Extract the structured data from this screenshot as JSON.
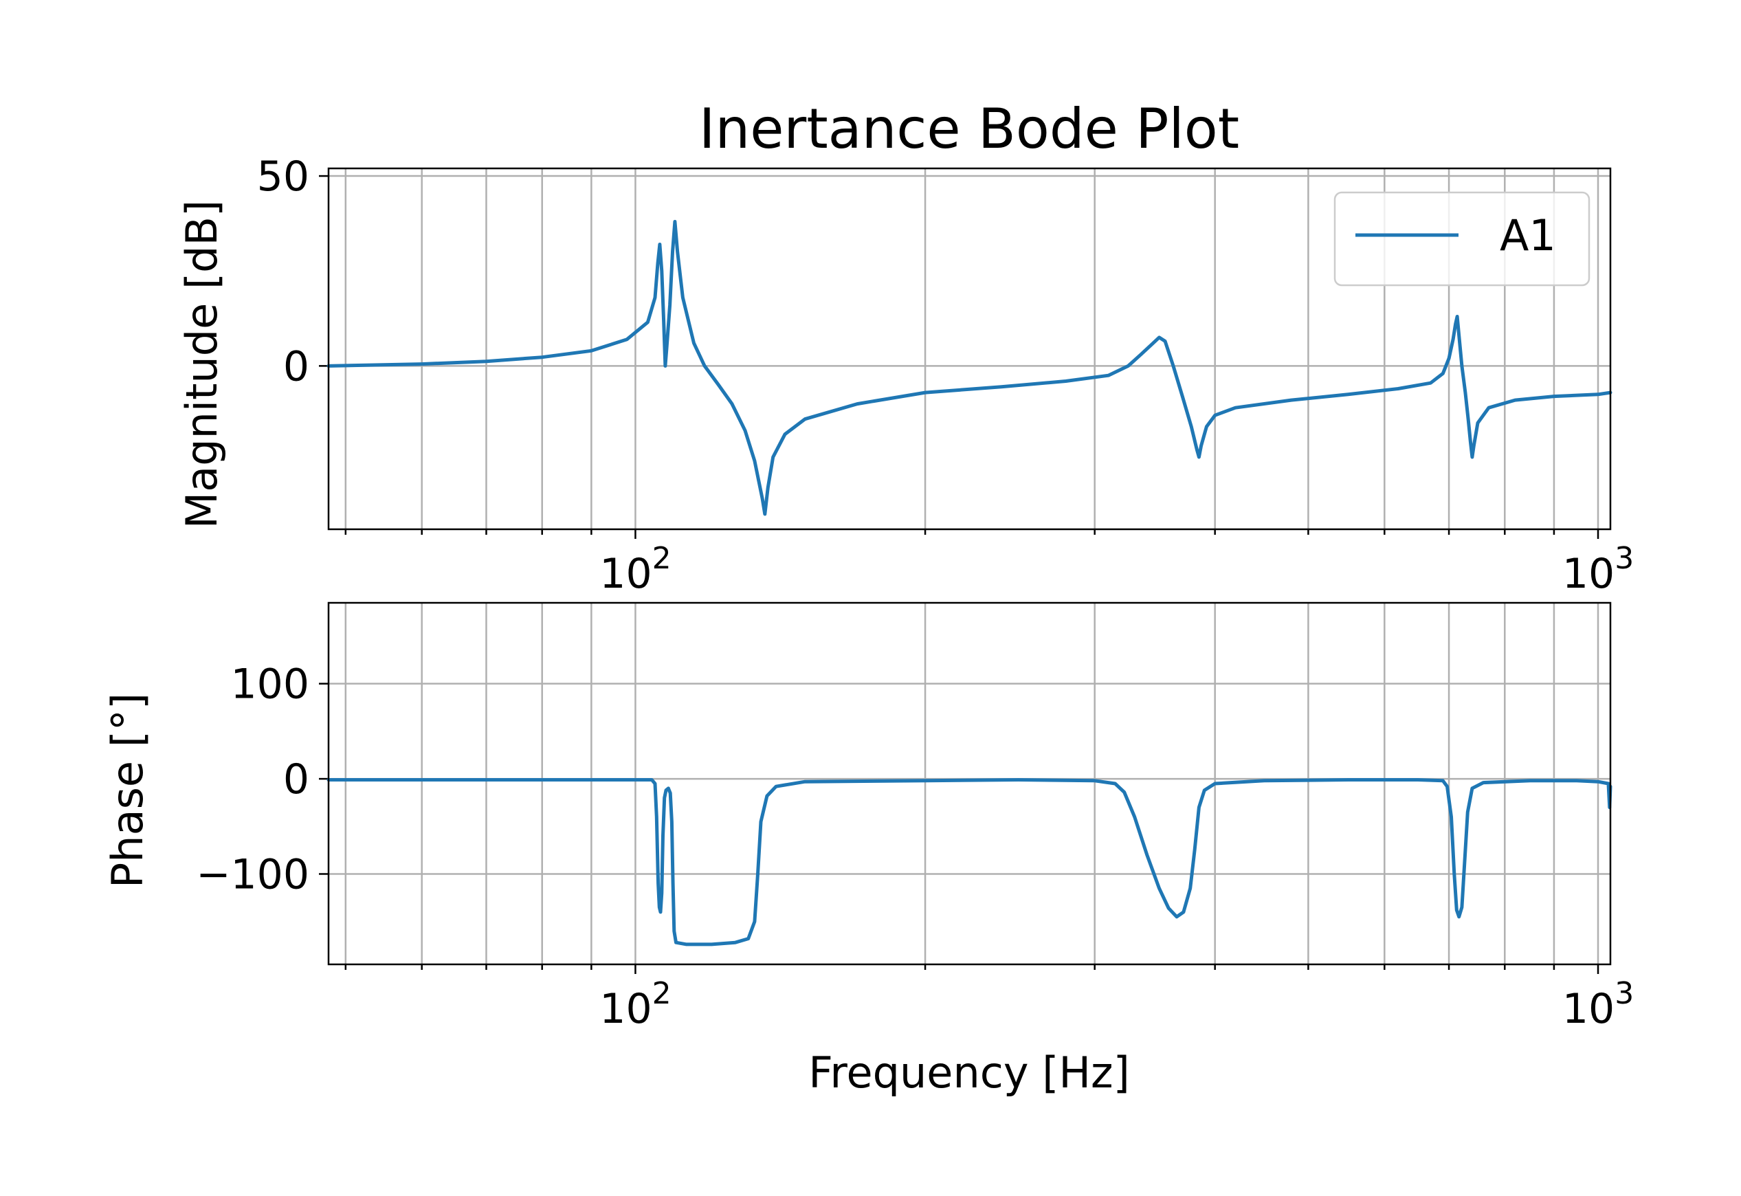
{
  "chart_data": {
    "type": "line",
    "title": "Inertance Bode Plot",
    "xlabel": "Frequency [Hz]",
    "x_scale": "log",
    "xlim": [
      48,
      1030
    ],
    "x_major_ticks": [
      {
        "value": 100,
        "base": "10",
        "exp": "2"
      },
      {
        "value": 1000,
        "base": "10",
        "exp": "3"
      }
    ],
    "x_minor_ticks": [
      50,
      60,
      70,
      80,
      90,
      200,
      300,
      400,
      500,
      600,
      700,
      800,
      900
    ],
    "legend": {
      "position": "top-right",
      "entries": [
        "A1"
      ]
    },
    "grid": true,
    "line_color": "#1f77b4",
    "subplots": [
      {
        "name": "magnitude",
        "ylabel": "Magnitude [dB]",
        "ylim": [
          -43,
          52
        ],
        "yticks": [
          0,
          50
        ],
        "series": [
          {
            "name": "A1",
            "points": [
              [
                48,
                0
              ],
              [
                60,
                0.5
              ],
              [
                70,
                1.2
              ],
              [
                80,
                2.3
              ],
              [
                90,
                4.0
              ],
              [
                98,
                7.0
              ],
              [
                103,
                11.5
              ],
              [
                104.8,
                18
              ],
              [
                105.5,
                27
              ],
              [
                106.0,
                32
              ],
              [
                106.5,
                25
              ],
              [
                107.0,
                12
              ],
              [
                107.4,
                0
              ],
              [
                107.8,
                5
              ],
              [
                108.6,
                16
              ],
              [
                109.3,
                30
              ],
              [
                109.9,
                38
              ],
              [
                110.6,
                30
              ],
              [
                112,
                18
              ],
              [
                115,
                6
              ],
              [
                118,
                0
              ],
              [
                122,
                -5
              ],
              [
                126,
                -10
              ],
              [
                130,
                -17
              ],
              [
                133,
                -25
              ],
              [
                134.5,
                -31
              ],
              [
                135.5,
                -35
              ],
              [
                136.3,
                -39
              ],
              [
                137.3,
                -32
              ],
              [
                139,
                -24
              ],
              [
                143,
                -18
              ],
              [
                150,
                -14
              ],
              [
                170,
                -10
              ],
              [
                200,
                -7
              ],
              [
                240,
                -5.5
              ],
              [
                280,
                -4
              ],
              [
                310,
                -2.5
              ],
              [
                325,
                0
              ],
              [
                335,
                3
              ],
              [
                345,
                6
              ],
              [
                350,
                7.5
              ],
              [
                355,
                6.5
              ],
              [
                362,
                0
              ],
              [
                370,
                -8
              ],
              [
                378,
                -16
              ],
              [
                383,
                -22
              ],
              [
                385,
                -24
              ],
              [
                387,
                -21
              ],
              [
                392,
                -16
              ],
              [
                400,
                -13
              ],
              [
                420,
                -11
              ],
              [
                480,
                -9
              ],
              [
                550,
                -7.5
              ],
              [
                620,
                -6
              ],
              [
                670,
                -4.5
              ],
              [
                690,
                -2
              ],
              [
                700,
                2
              ],
              [
                707,
                7
              ],
              [
                711,
                11
              ],
              [
                714,
                13
              ],
              [
                717,
                8
              ],
              [
                722,
                0
              ],
              [
                728,
                -7
              ],
              [
                733,
                -14
              ],
              [
                737,
                -20
              ],
              [
                740,
                -24
              ],
              [
                743,
                -21
              ],
              [
                750,
                -15
              ],
              [
                770,
                -11
              ],
              [
                820,
                -9
              ],
              [
                900,
                -8
              ],
              [
                1000,
                -7.5
              ],
              [
                1030,
                -7
              ]
            ]
          }
        ]
      },
      {
        "name": "phase",
        "ylabel": "Phase [°]",
        "ylim": [
          -195,
          185
        ],
        "yticks": [
          -100,
          0,
          100
        ],
        "series": [
          {
            "name": "A1",
            "points": [
              [
                48,
                -1
              ],
              [
                80,
                -1
              ],
              [
                100,
                -1
              ],
              [
                104,
                -1
              ],
              [
                104.8,
                -5
              ],
              [
                105.2,
                -40
              ],
              [
                105.6,
                -110
              ],
              [
                105.9,
                -135
              ],
              [
                106.2,
                -140
              ],
              [
                106.5,
                -120
              ],
              [
                106.8,
                -60
              ],
              [
                107.2,
                -20
              ],
              [
                107.6,
                -12
              ],
              [
                108.2,
                -10
              ],
              [
                108.7,
                -15
              ],
              [
                109.1,
                -45
              ],
              [
                109.4,
                -110
              ],
              [
                109.7,
                -160
              ],
              [
                110.2,
                -172
              ],
              [
                113,
                -174
              ],
              [
                120,
                -174
              ],
              [
                127,
                -172
              ],
              [
                131,
                -168
              ],
              [
                133,
                -150
              ],
              [
                134,
                -100
              ],
              [
                135,
                -45
              ],
              [
                137,
                -18
              ],
              [
                140,
                -8
              ],
              [
                150,
                -3
              ],
              [
                200,
                -2
              ],
              [
                250,
                -1
              ],
              [
                300,
                -2
              ],
              [
                315,
                -5
              ],
              [
                322,
                -14
              ],
              [
                330,
                -40
              ],
              [
                340,
                -80
              ],
              [
                350,
                -115
              ],
              [
                358,
                -136
              ],
              [
                365,
                -145
              ],
              [
                371,
                -140
              ],
              [
                377,
                -115
              ],
              [
                381,
                -75
              ],
              [
                385,
                -30
              ],
              [
                390,
                -12
              ],
              [
                400,
                -5
              ],
              [
                450,
                -2
              ],
              [
                550,
                -1
              ],
              [
                650,
                -1
              ],
              [
                690,
                -2
              ],
              [
                697,
                -8
              ],
              [
                704,
                -40
              ],
              [
                709,
                -100
              ],
              [
                713,
                -138
              ],
              [
                717,
                -145
              ],
              [
                722,
                -135
              ],
              [
                727,
                -85
              ],
              [
                732,
                -35
              ],
              [
                740,
                -10
              ],
              [
                760,
                -4
              ],
              [
                850,
                -2
              ],
              [
                950,
                -2
              ],
              [
                1000,
                -3
              ],
              [
                1025,
                -5
              ],
              [
                1028,
                -30
              ],
              [
                1030,
                -8
              ]
            ]
          }
        ]
      }
    ]
  }
}
